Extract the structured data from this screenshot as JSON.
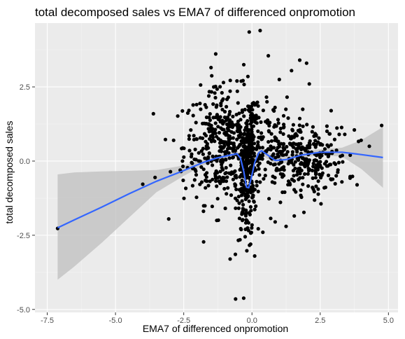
{
  "chart_data": {
    "type": "scatter",
    "title": "total decomposed sales vs EMA7 of differenced onpromotion",
    "xlabel": "EMA7 of differenced onpromotion",
    "ylabel": "total decomposed sales",
    "xlim": [
      -7.5,
      5.0
    ],
    "ylim": [
      -5.0,
      4.5
    ],
    "x_ticks": [
      -7.5,
      -5.0,
      -2.5,
      0.0,
      2.5,
      5.0
    ],
    "x_tick_labels": [
      "-7.5",
      "-5.0",
      "-2.5",
      "0.0",
      "2.5",
      "5.0"
    ],
    "y_ticks": [
      -5.0,
      -2.5,
      0.0,
      2.5
    ],
    "y_tick_labels": [
      "-5.0",
      "-2.5",
      "0.0",
      "2.5"
    ],
    "grid": true,
    "panel_background": "#ebebeb",
    "point_color": "#000000",
    "smooth_color": "#3366ff",
    "ribbon_color": "#bfbfbf",
    "series": [
      {
        "type": "scatter",
        "points": [
          [
            -7.12,
            -2.27
          ],
          [
            -4.0,
            -0.78
          ],
          [
            -3.05,
            -1.95
          ],
          [
            -2.87,
            0.7
          ],
          [
            -2.52,
            -0.65
          ],
          [
            -2.36,
            -0.22
          ],
          [
            -2.21,
            -0.05
          ],
          [
            -2.05,
            0.05
          ],
          [
            -1.5,
            3.15
          ],
          [
            -1.4,
            2.5
          ],
          [
            -0.8,
            -3.3
          ],
          [
            -0.6,
            -4.65
          ],
          [
            -0.3,
            3.25
          ],
          [
            -0.1,
            4.35
          ],
          [
            0.3,
            4.4
          ],
          [
            0.6,
            3.55
          ],
          [
            1.45,
            3.05
          ],
          [
            1.75,
            3.4
          ],
          [
            2.0,
            3.3
          ],
          [
            2.9,
            1.7
          ],
          [
            3.4,
            0.9
          ],
          [
            3.6,
            0.2
          ],
          [
            3.85,
            -0.8
          ],
          [
            4.75,
            1.2
          ],
          [
            4.3,
            0.5
          ],
          [
            -3.55,
            -0.55
          ],
          [
            -2.6,
            -0.35
          ],
          [
            1.0,
            2.75
          ],
          [
            2.1,
            2.6
          ],
          [
            -0.05,
            -2.8
          ],
          [
            0.1,
            -3.2
          ],
          [
            0.4,
            -2.4
          ],
          [
            -1.1,
            2.3
          ],
          [
            1.25,
            -2.2
          ],
          [
            -0.15,
            2.85
          ],
          [
            -0.25,
            -2.55
          ],
          [
            0.55,
            2.0
          ],
          [
            0.85,
            -2.05
          ],
          [
            -0.55,
            2.7
          ],
          [
            2.25,
            -0.95
          ],
          [
            2.65,
            -0.9
          ],
          [
            3.15,
            -0.3
          ],
          [
            3.75,
            1.05
          ],
          [
            4.0,
            0.7
          ],
          [
            1.55,
            -1.85
          ]
        ]
      },
      {
        "type": "smooth",
        "name": "",
        "points": [
          [
            -7.12,
            -2.25
          ],
          [
            -6.5,
            -1.98
          ],
          [
            -5.5,
            -1.55
          ],
          [
            -4.5,
            -1.1
          ],
          [
            -3.5,
            -0.68
          ],
          [
            -2.5,
            -0.32
          ],
          [
            -1.8,
            -0.05
          ],
          [
            -1.3,
            0.1
          ],
          [
            -0.8,
            0.2
          ],
          [
            -0.55,
            0.25
          ],
          [
            -0.42,
            0.1
          ],
          [
            -0.3,
            -0.35
          ],
          [
            -0.2,
            -0.88
          ],
          [
            -0.12,
            -0.9
          ],
          [
            -0.02,
            -0.55
          ],
          [
            0.1,
            -0.05
          ],
          [
            0.25,
            0.28
          ],
          [
            0.35,
            0.35
          ],
          [
            0.55,
            0.22
          ],
          [
            0.85,
            0.02
          ],
          [
            1.25,
            0.05
          ],
          [
            1.8,
            0.2
          ],
          [
            2.5,
            0.3
          ],
          [
            3.3,
            0.3
          ],
          [
            4.0,
            0.22
          ],
          [
            4.8,
            0.12
          ]
        ]
      },
      {
        "type": "ribbon",
        "upper": [
          [
            -7.12,
            -0.45
          ],
          [
            -6.5,
            -0.38
          ],
          [
            -5.5,
            -0.35
          ],
          [
            -4.5,
            -0.33
          ],
          [
            -3.5,
            -0.3
          ],
          [
            -2.5,
            -0.15
          ],
          [
            -1.8,
            0.05
          ],
          [
            -1.3,
            0.2
          ],
          [
            -0.8,
            0.3
          ],
          [
            -0.55,
            0.35
          ],
          [
            -0.42,
            0.25
          ],
          [
            -0.3,
            -0.2
          ],
          [
            -0.2,
            -0.72
          ],
          [
            -0.12,
            -0.75
          ],
          [
            -0.02,
            -0.4
          ],
          [
            0.1,
            0.1
          ],
          [
            0.25,
            0.42
          ],
          [
            0.35,
            0.48
          ],
          [
            0.55,
            0.35
          ],
          [
            0.85,
            0.15
          ],
          [
            1.25,
            0.17
          ],
          [
            1.8,
            0.3
          ],
          [
            2.5,
            0.4
          ],
          [
            3.3,
            0.45
          ],
          [
            4.0,
            0.7
          ],
          [
            4.8,
            1.15
          ]
        ],
        "lower": [
          [
            -7.12,
            -4.0
          ],
          [
            -6.5,
            -3.55
          ],
          [
            -5.5,
            -2.75
          ],
          [
            -4.5,
            -1.9
          ],
          [
            -3.5,
            -1.05
          ],
          [
            -2.5,
            -0.5
          ],
          [
            -1.8,
            -0.15
          ],
          [
            -1.3,
            0.0
          ],
          [
            -0.8,
            0.1
          ],
          [
            -0.55,
            0.15
          ],
          [
            -0.42,
            -0.05
          ],
          [
            -0.3,
            -0.5
          ],
          [
            -0.2,
            -1.04
          ],
          [
            -0.12,
            -1.05
          ],
          [
            -0.02,
            -0.7
          ],
          [
            0.1,
            -0.2
          ],
          [
            0.25,
            0.14
          ],
          [
            0.35,
            0.22
          ],
          [
            0.55,
            0.09
          ],
          [
            0.85,
            -0.11
          ],
          [
            1.25,
            -0.07
          ],
          [
            1.8,
            0.1
          ],
          [
            2.5,
            0.2
          ],
          [
            3.3,
            0.15
          ],
          [
            4.0,
            -0.26
          ],
          [
            4.8,
            -0.9
          ]
        ]
      }
    ],
    "dense_clusters": [
      {
        "x_mean": -1.0,
        "x_sd": 0.75,
        "y_mean": 0.5,
        "y_sd": 0.95,
        "n": 420
      },
      {
        "x_mean": -0.2,
        "x_sd": 0.18,
        "y_mean": -0.6,
        "y_sd": 1.0,
        "n": 180
      },
      {
        "x_mean": 0.0,
        "x_sd": 0.05,
        "y_mean": 0.6,
        "y_sd": 1.0,
        "n": 60
      },
      {
        "x_mean": 0.9,
        "x_sd": 0.6,
        "y_mean": 0.4,
        "y_sd": 0.75,
        "n": 170
      },
      {
        "x_mean": 2.2,
        "x_sd": 0.65,
        "y_mean": 0.0,
        "y_sd": 0.55,
        "n": 190
      }
    ]
  }
}
